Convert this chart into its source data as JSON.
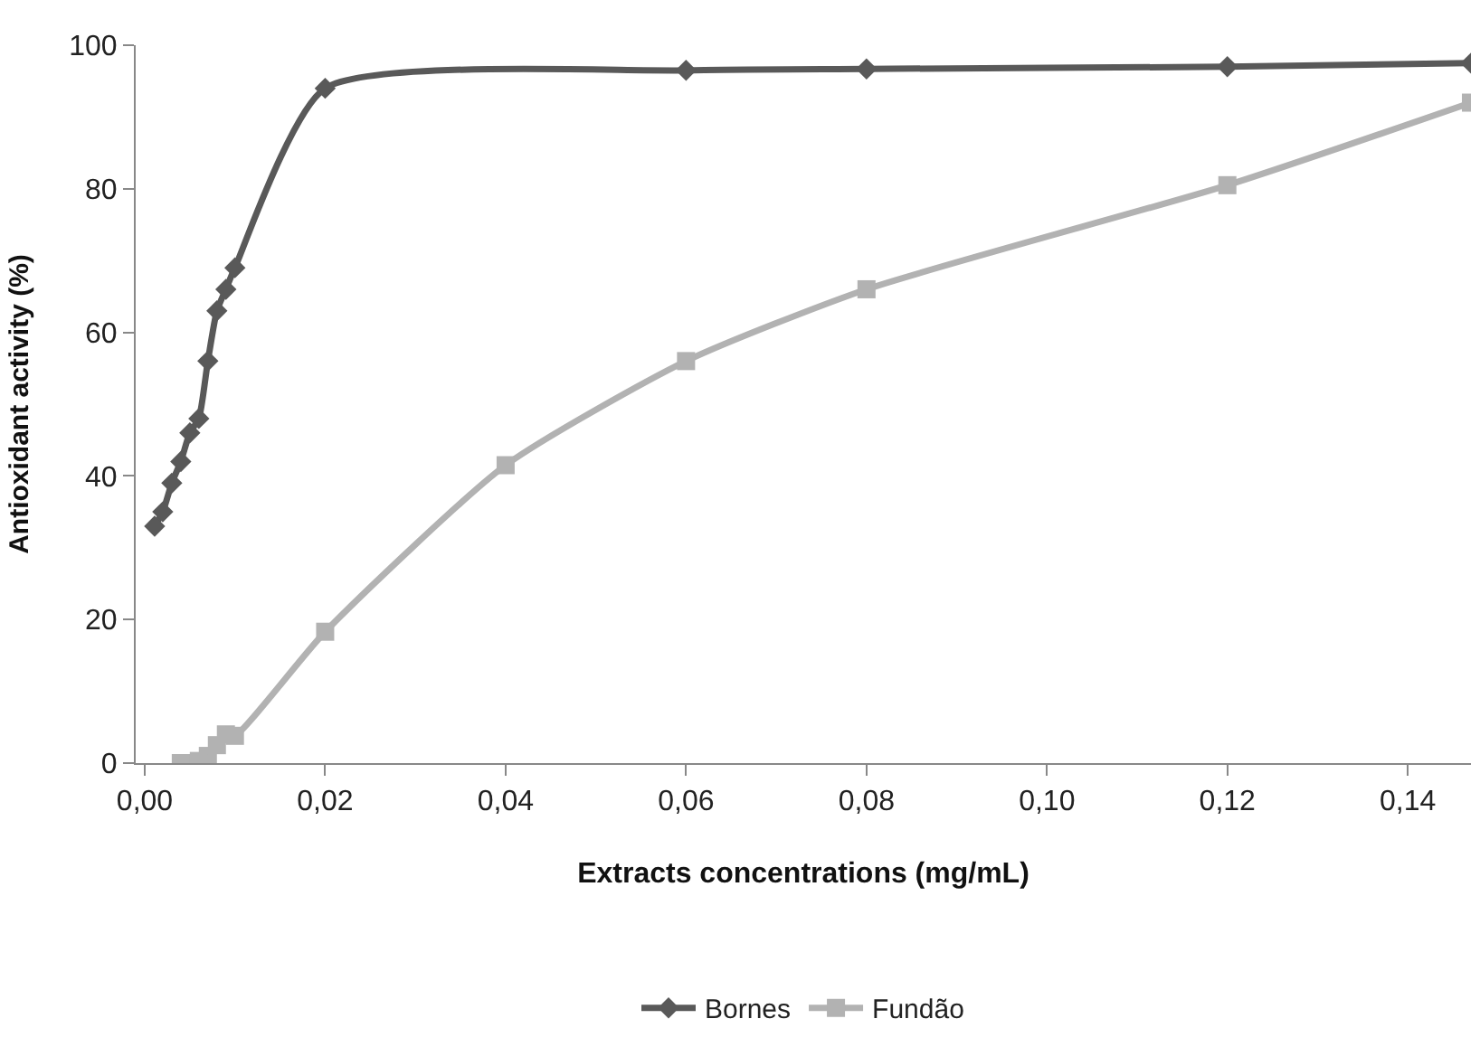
{
  "chart_data": {
    "type": "line",
    "xlabel": "Extracts concentrations (mg/mL)",
    "ylabel": "Antioxidant activity (%)",
    "series": [
      {
        "name": "Bornes",
        "color": "#595959",
        "marker": "diamond",
        "x": [
          0.0011,
          0.002,
          0.003,
          0.004,
          0.005,
          0.006,
          0.007,
          0.008,
          0.009,
          0.01,
          0.02,
          0.06,
          0.08,
          0.12,
          0.147
        ],
        "values": [
          33,
          35,
          39,
          42,
          46,
          48,
          56,
          63,
          66,
          69,
          94,
          96.5,
          96.7,
          97,
          97.5
        ]
      },
      {
        "name": "Fundão",
        "color": "#b2b2b2",
        "marker": "square",
        "x": [
          0.004,
          0.005,
          0.006,
          0.007,
          0.008,
          0.009,
          0.01,
          0.02,
          0.04,
          0.06,
          0.08,
          0.12,
          0.147
        ],
        "values": [
          0,
          0,
          0.3,
          1,
          2.5,
          4,
          3.8,
          18.3,
          41.5,
          56,
          66,
          80.5,
          92
        ]
      }
    ],
    "xlim": [
      -0.001,
      0.147
    ],
    "ylim": [
      0,
      100
    ],
    "xticks": [
      {
        "value": 0,
        "label": "0,00"
      },
      {
        "value": 0.02,
        "label": "0,02"
      },
      {
        "value": 0.04,
        "label": "0,04"
      },
      {
        "value": 0.06,
        "label": "0,06"
      },
      {
        "value": 0.08,
        "label": "0,08"
      },
      {
        "value": 0.1,
        "label": "0,10"
      },
      {
        "value": 0.12,
        "label": "0,12"
      },
      {
        "value": 0.14,
        "label": "0,14"
      }
    ],
    "yticks": [
      0,
      20,
      40,
      60,
      80,
      100
    ],
    "legend": "bottom",
    "line_style": "solid"
  }
}
